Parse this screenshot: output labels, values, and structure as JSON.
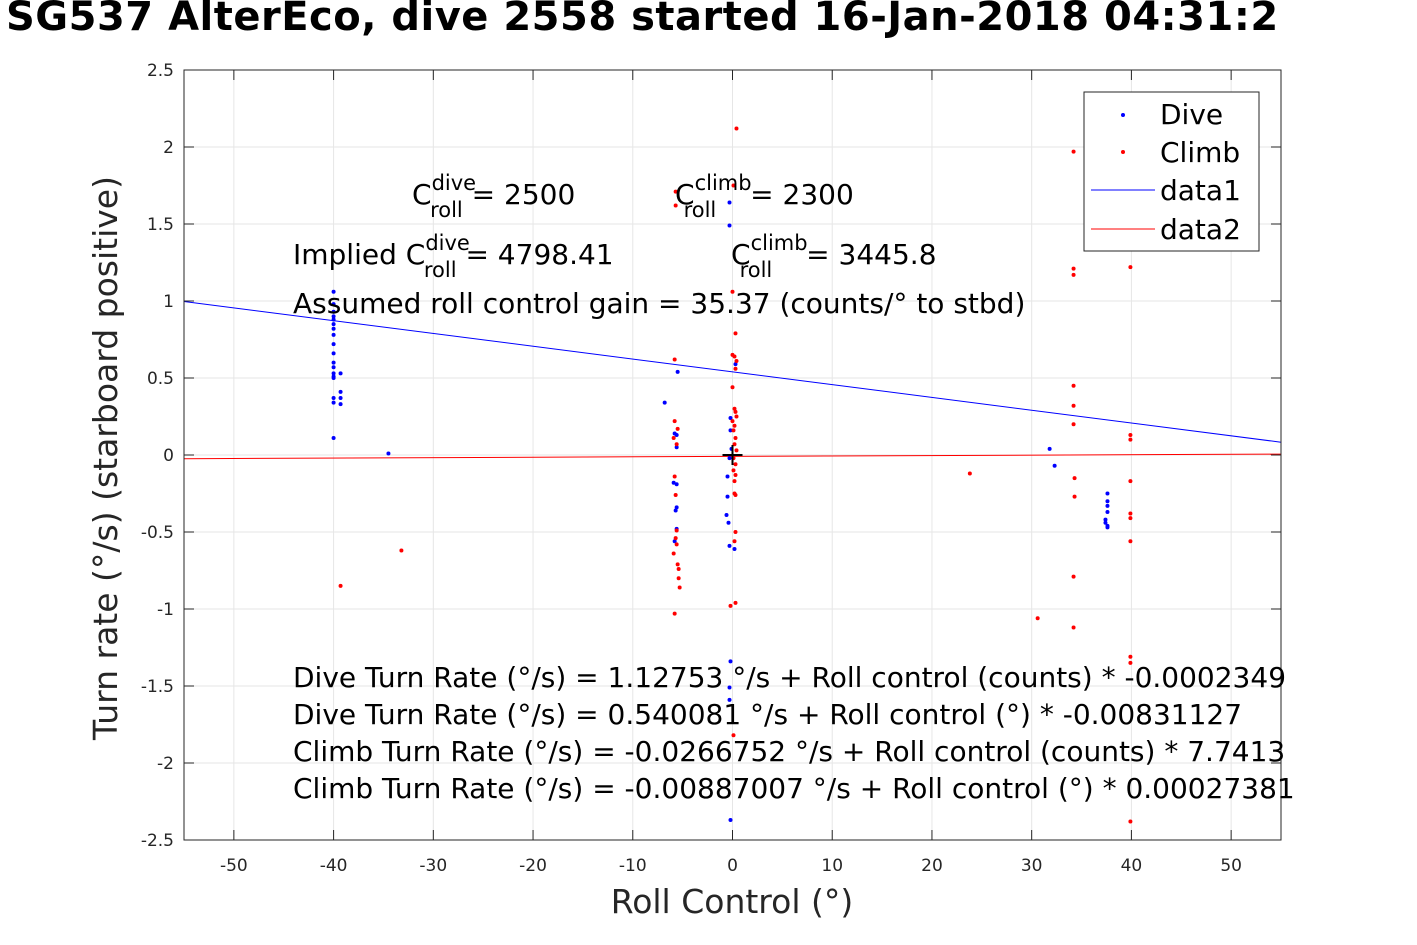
{
  "title": "SG537 AlterEco, dive 2558 started 16-Jan-2018 04:31:2",
  "colors": {
    "dive": "#0000ff",
    "climb": "#ff0000",
    "grid": "#e6e6e6",
    "axis": "#262626"
  },
  "chart_data": {
    "type": "scatter",
    "xlabel": "Roll Control (°)",
    "ylabel": "Turn rate (°/s) (starboard positive)",
    "xlim": [
      -55,
      55
    ],
    "ylim": [
      -2.5,
      2.5
    ],
    "xticks": [
      -50,
      -40,
      -30,
      -20,
      -10,
      0,
      10,
      20,
      30,
      40,
      50
    ],
    "yticks": [
      -2.5,
      -2,
      -1.5,
      -1,
      -0.5,
      0,
      0.5,
      1,
      1.5,
      2,
      2.5
    ],
    "grid": true,
    "legend_position": "top-right",
    "legend": [
      "Dive",
      "Climb",
      "data1",
      "data2"
    ],
    "series": [
      {
        "name": "Dive",
        "kind": "points",
        "color": "#0000ff",
        "points": [
          [
            -40,
            1.06
          ],
          [
            -40,
            0.98
          ],
          [
            -40,
            0.93
          ],
          [
            -40,
            0.9
          ],
          [
            -40,
            0.88
          ],
          [
            -40,
            0.85
          ],
          [
            -40,
            0.82
          ],
          [
            -40,
            0.78
          ],
          [
            -40,
            0.72
          ],
          [
            -40,
            0.66
          ],
          [
            -40,
            0.6
          ],
          [
            -40,
            0.57
          ],
          [
            -40,
            0.53
          ],
          [
            -40,
            0.51
          ],
          [
            -40,
            0.5
          ],
          [
            -40,
            0.37
          ],
          [
            -40,
            0.34
          ],
          [
            -40,
            0.11
          ],
          [
            -39.3,
            0.53
          ],
          [
            -39.3,
            0.41
          ],
          [
            -39.3,
            0.37
          ],
          [
            -39.3,
            0.33
          ],
          [
            -34.5,
            0.01
          ],
          [
            -6.8,
            0.34
          ],
          [
            -5.5,
            0.54
          ],
          [
            -5.8,
            0.14
          ],
          [
            -5.6,
            0.13
          ],
          [
            -5.6,
            0.05
          ],
          [
            -5.9,
            -0.18
          ],
          [
            -5.6,
            -0.19
          ],
          [
            -5.6,
            -0.34
          ],
          [
            -5.7,
            -0.36
          ],
          [
            -5.6,
            -0.48
          ],
          [
            -5.8,
            -0.56
          ],
          [
            -0.3,
            1.64
          ],
          [
            -0.3,
            1.49
          ],
          [
            0.3,
            0.59
          ],
          [
            -0.2,
            0.24
          ],
          [
            -0.2,
            0.16
          ],
          [
            -0.1,
            0.04
          ],
          [
            -0.3,
            -0.02
          ],
          [
            -0.5,
            -0.14
          ],
          [
            -0.5,
            -0.27
          ],
          [
            -0.6,
            -0.39
          ],
          [
            -0.4,
            -0.44
          ],
          [
            -0.3,
            -0.59
          ],
          [
            0.2,
            -0.61
          ],
          [
            -0.2,
            -1.34
          ],
          [
            -0.3,
            -1.51
          ],
          [
            -0.3,
            -1.59
          ],
          [
            -0.2,
            -2.37
          ],
          [
            31.8,
            0.04
          ],
          [
            32.3,
            -0.07
          ],
          [
            37.6,
            -0.25
          ],
          [
            37.6,
            -0.3
          ],
          [
            37.6,
            -0.33
          ],
          [
            37.6,
            -0.37
          ],
          [
            37.4,
            -0.42
          ],
          [
            37.4,
            -0.44
          ],
          [
            37.6,
            -0.46
          ],
          [
            37.6,
            -0.47
          ]
        ]
      },
      {
        "name": "Climb",
        "kind": "points",
        "color": "#ff0000",
        "points": [
          [
            -39.3,
            -0.85
          ],
          [
            -33.2,
            -0.62
          ],
          [
            -5.8,
            0.62
          ],
          [
            -5.8,
            0.22
          ],
          [
            -5.5,
            0.17
          ],
          [
            -5.9,
            0.11
          ],
          [
            -5.6,
            0.07
          ],
          [
            -5.8,
            -0.14
          ],
          [
            -5.7,
            -0.26
          ],
          [
            -5.6,
            -0.49
          ],
          [
            -5.7,
            -0.54
          ],
          [
            -5.6,
            -0.58
          ],
          [
            -5.9,
            -0.64
          ],
          [
            -5.5,
            -0.71
          ],
          [
            -5.4,
            -0.74
          ],
          [
            -5.4,
            -0.8
          ],
          [
            -5.3,
            -0.86
          ],
          [
            -5.8,
            -1.03
          ],
          [
            -5.7,
            1.71
          ],
          [
            -5.7,
            1.62
          ],
          [
            0.4,
            2.12
          ],
          [
            0.1,
            1.75
          ],
          [
            0,
            1.06
          ],
          [
            0.3,
            0.79
          ],
          [
            0,
            0.65
          ],
          [
            0.2,
            0.64
          ],
          [
            0.4,
            0.61
          ],
          [
            0.3,
            0.56
          ],
          [
            0,
            0.44
          ],
          [
            0.2,
            0.3
          ],
          [
            0.3,
            0.28
          ],
          [
            0.4,
            0.25
          ],
          [
            0,
            0.22
          ],
          [
            0.2,
            0.19
          ],
          [
            0.1,
            0.16
          ],
          [
            0.3,
            0.11
          ],
          [
            0.2,
            0.07
          ],
          [
            0.4,
            0.03
          ],
          [
            0.1,
            -0.02
          ],
          [
            0.3,
            -0.06
          ],
          [
            0.1,
            -0.1
          ],
          [
            0.3,
            -0.13
          ],
          [
            0.2,
            -0.17
          ],
          [
            0.2,
            -0.25
          ],
          [
            0.3,
            -0.26
          ],
          [
            0.3,
            -0.5
          ],
          [
            0.2,
            -0.56
          ],
          [
            -0.2,
            -0.98
          ],
          [
            0.3,
            -0.96
          ],
          [
            0.1,
            -1.82
          ],
          [
            23.8,
            -0.12
          ],
          [
            30.6,
            -1.06
          ],
          [
            34.2,
            1.97
          ],
          [
            34.2,
            1.21
          ],
          [
            34.2,
            1.17
          ],
          [
            34.2,
            0.45
          ],
          [
            34.2,
            0.32
          ],
          [
            34.2,
            0.2
          ],
          [
            34.3,
            -0.15
          ],
          [
            34.3,
            -0.27
          ],
          [
            34.2,
            -0.79
          ],
          [
            34.2,
            -1.12
          ],
          [
            39.9,
            1.22
          ],
          [
            39.9,
            0.13
          ],
          [
            39.9,
            0.1
          ],
          [
            39.9,
            -0.17
          ],
          [
            39.9,
            -0.38
          ],
          [
            39.9,
            -0.41
          ],
          [
            39.9,
            -0.56
          ],
          [
            39.9,
            -1.31
          ],
          [
            39.9,
            -1.35
          ],
          [
            39.9,
            -2.38
          ]
        ]
      },
      {
        "name": "data1",
        "kind": "line",
        "color": "#0000ff",
        "x": [
          -55,
          55
        ],
        "y": [
          0.997,
          0.083
        ]
      },
      {
        "name": "data2",
        "kind": "line",
        "color": "#ff0000",
        "x": [
          -55,
          55
        ],
        "y": [
          -0.024,
          0.006
        ]
      }
    ],
    "annotations": {
      "crosshair": [
        0,
        0
      ],
      "c_dive": {
        "base": "C",
        "sup": "dive",
        "sub": "roll",
        "value": " = 2500"
      },
      "c_climb": {
        "base": "C",
        "sup": "climb",
        "sub": "roll",
        "value": " = 2300"
      },
      "implied_dive": {
        "prefix": "Implied C",
        "sup": "dive",
        "sub": "roll",
        "value": " = 4798.41"
      },
      "implied_climb": {
        "base": "C",
        "sup": "climb",
        "sub": "roll",
        "value": " = 3445.8"
      },
      "gain": "Assumed roll control gain = 35.37 (counts/° to stbd)",
      "eq1": "Dive Turn Rate (°/s) = 1.12753 °/s + Roll control (counts) * -0.0002349",
      "eq2": "Dive Turn Rate (°/s) = 0.540081 °/s + Roll control (°) * -0.00831127",
      "eq3": "Climb Turn Rate (°/s) = -0.0266752 °/s + Roll control (counts) * 7.7413",
      "eq4": "Climb Turn Rate (°/s) = -0.00887007 °/s + Roll control (°) * 0.00027381"
    }
  }
}
